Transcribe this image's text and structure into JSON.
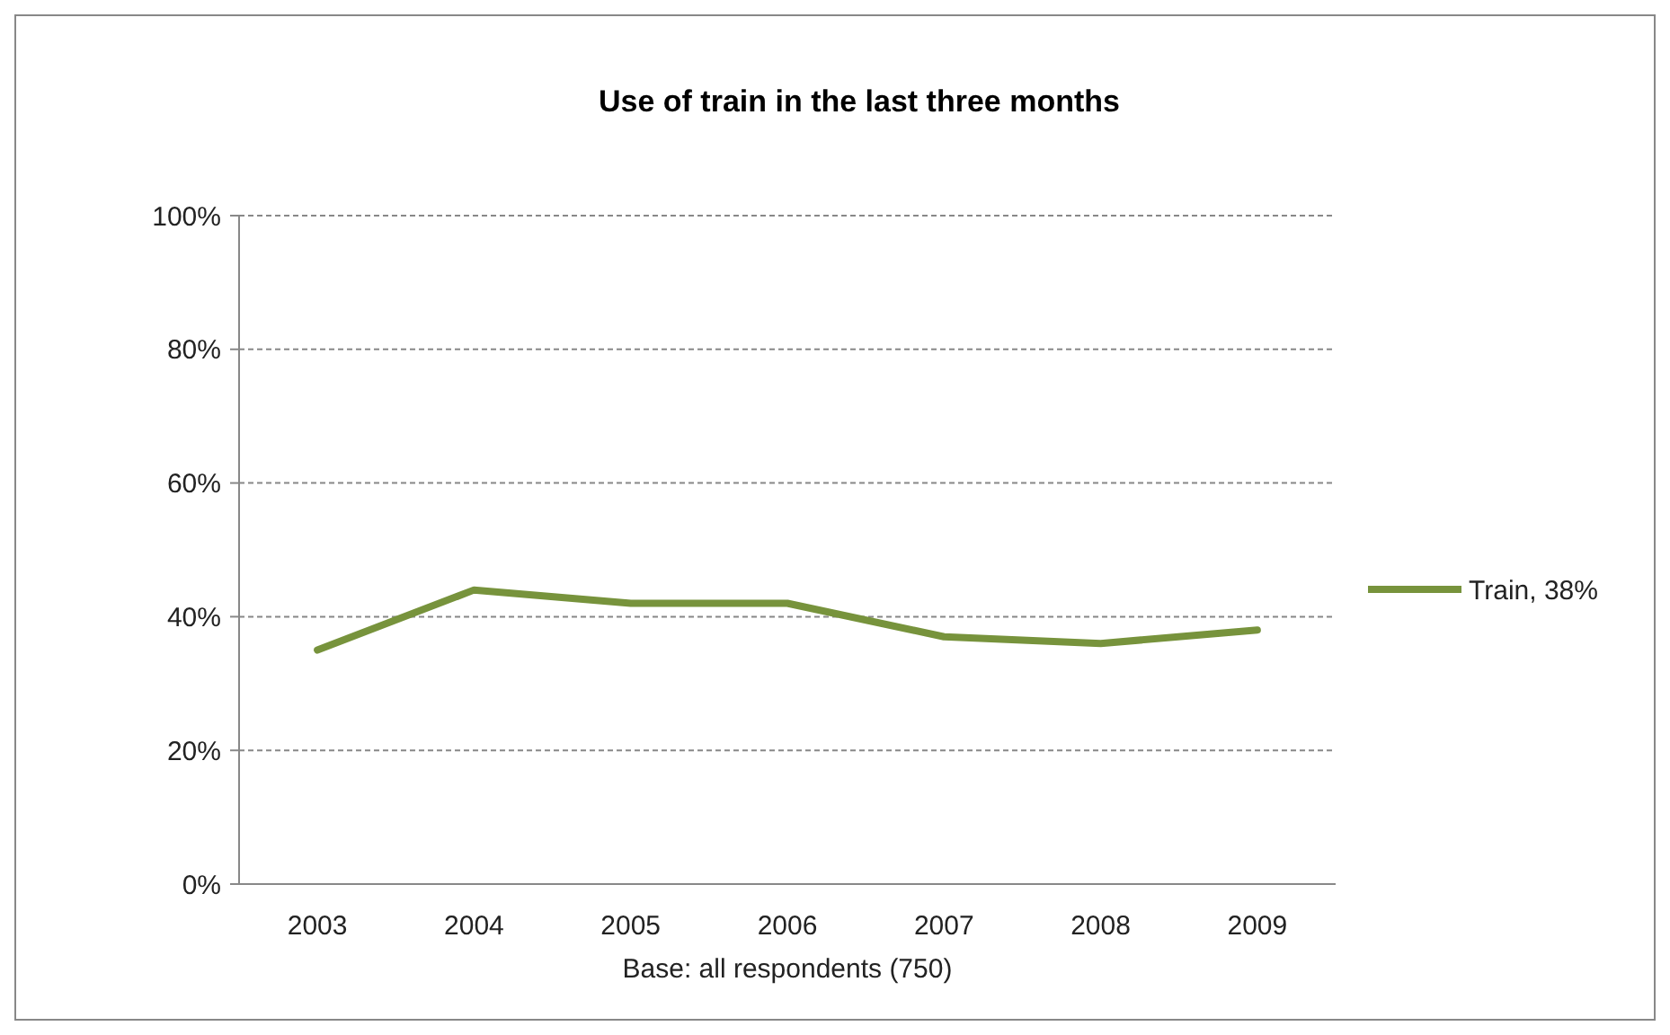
{
  "chart_data": {
    "type": "line",
    "title": "Use of train in the last three months",
    "categories": [
      "2003",
      "2004",
      "2005",
      "2006",
      "2007",
      "2008",
      "2009"
    ],
    "series": [
      {
        "name": "Train, 38%",
        "color": "#77933c",
        "values": [
          35,
          44,
          42,
          42,
          37,
          36,
          38
        ]
      }
    ],
    "ylim": [
      0,
      100
    ],
    "yticks": [
      {
        "value": 0,
        "label": "0%"
      },
      {
        "value": 20,
        "label": "20%"
      },
      {
        "value": 40,
        "label": "40%"
      },
      {
        "value": 60,
        "label": "60%"
      },
      {
        "value": 80,
        "label": "80%"
      },
      {
        "value": 100,
        "label": "100%"
      }
    ],
    "grid": "y",
    "legend": "right",
    "marker": "none",
    "line_style": "solid",
    "annotations": [
      "Base: all respondents (750)"
    ]
  }
}
